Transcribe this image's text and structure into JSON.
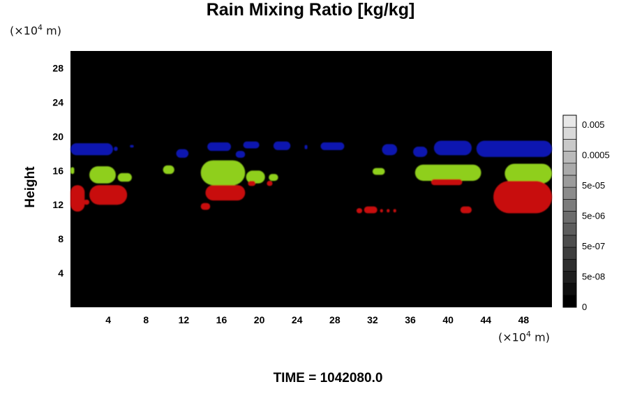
{
  "title": "Rain Mixing Ratio [kg/kg]",
  "ylabel": "Height",
  "y_unit": {
    "prefix": "(×10",
    "exp": "4",
    "suffix": " m)"
  },
  "x_unit": {
    "prefix": "(×10",
    "exp": "4",
    "suffix": " m)"
  },
  "time_label": "TIME = 1042080.0",
  "colors": {
    "background": "#000000",
    "page": "#ffffff",
    "blue_layer": "#0d14b0",
    "green_layer": "#8fcf1a",
    "red_layer": "#c81010"
  },
  "chart_data": {
    "type": "heatmap",
    "title": "Rain Mixing Ratio [kg/kg]",
    "xlabel": "",
    "ylabel": "Height",
    "xlim": [
      0,
      51
    ],
    "ylim": [
      0,
      30
    ],
    "x_ticks": [
      "4",
      "8",
      "12",
      "16",
      "20",
      "24",
      "28",
      "32",
      "36",
      "40",
      "44",
      "48"
    ],
    "y_ticks": [
      "4",
      "8",
      "12",
      "16",
      "20",
      "24",
      "28"
    ],
    "colorbar": {
      "labels": [
        "0.005",
        "0.0005",
        "5e-05",
        "5e-06",
        "5e-07",
        "5e-08",
        "0"
      ],
      "levels": 16,
      "color_min": "#000000",
      "color_max": "#e8e8e8"
    },
    "blobs": [
      {
        "layer": "blue",
        "x0": 0,
        "x1": 4.5,
        "y0": 17.8,
        "y1": 19.2
      },
      {
        "layer": "blue",
        "x0": 4.6,
        "x1": 5.0,
        "y0": 18.3,
        "y1": 18.8
      },
      {
        "layer": "blue",
        "x0": 6.3,
        "x1": 6.7,
        "y0": 18.7,
        "y1": 19.0
      },
      {
        "layer": "blue",
        "x0": 11.2,
        "x1": 12.5,
        "y0": 17.5,
        "y1": 18.5
      },
      {
        "layer": "blue",
        "x0": 14.5,
        "x1": 17.0,
        "y0": 18.3,
        "y1": 19.3
      },
      {
        "layer": "blue",
        "x0": 17.5,
        "x1": 18.5,
        "y0": 17.5,
        "y1": 18.3
      },
      {
        "layer": "blue",
        "x0": 18.3,
        "x1": 20.0,
        "y0": 18.6,
        "y1": 19.4
      },
      {
        "layer": "blue",
        "x0": 21.5,
        "x1": 23.3,
        "y0": 18.4,
        "y1": 19.4
      },
      {
        "layer": "blue",
        "x0": 24.8,
        "x1": 25.1,
        "y0": 18.5,
        "y1": 19.0
      },
      {
        "layer": "blue",
        "x0": 26.5,
        "x1": 29.0,
        "y0": 18.4,
        "y1": 19.3
      },
      {
        "layer": "blue",
        "x0": 33.0,
        "x1": 34.6,
        "y0": 17.8,
        "y1": 19.1
      },
      {
        "layer": "blue",
        "x0": 36.3,
        "x1": 37.8,
        "y0": 17.6,
        "y1": 18.8
      },
      {
        "layer": "blue",
        "x0": 38.5,
        "x1": 42.5,
        "y0": 17.8,
        "y1": 19.5
      },
      {
        "layer": "blue",
        "x0": 43.0,
        "x1": 51.0,
        "y0": 17.6,
        "y1": 19.5
      },
      {
        "layer": "green",
        "x0": 0,
        "x1": 0.4,
        "y0": 15.6,
        "y1": 16.4
      },
      {
        "layer": "green",
        "x0": 2.0,
        "x1": 4.8,
        "y0": 14.5,
        "y1": 16.5
      },
      {
        "layer": "green",
        "x0": 5.0,
        "x1": 6.5,
        "y0": 14.7,
        "y1": 15.7
      },
      {
        "layer": "green",
        "x0": 9.8,
        "x1": 11.0,
        "y0": 15.6,
        "y1": 16.6
      },
      {
        "layer": "green",
        "x0": 13.8,
        "x1": 18.5,
        "y0": 14.3,
        "y1": 17.2
      },
      {
        "layer": "green",
        "x0": 18.6,
        "x1": 20.6,
        "y0": 14.5,
        "y1": 16.0
      },
      {
        "layer": "green",
        "x0": 21.0,
        "x1": 22.0,
        "y0": 14.8,
        "y1": 15.6
      },
      {
        "layer": "green",
        "x0": 32.0,
        "x1": 33.3,
        "y0": 15.5,
        "y1": 16.3
      },
      {
        "layer": "green",
        "x0": 36.5,
        "x1": 43.5,
        "y0": 14.8,
        "y1": 16.7
      },
      {
        "layer": "green",
        "x0": 46.0,
        "x1": 51.0,
        "y0": 14.5,
        "y1": 16.8
      },
      {
        "layer": "red",
        "x0": 0,
        "x1": 1.5,
        "y0": 11.2,
        "y1": 14.3
      },
      {
        "layer": "red",
        "x0": 1.4,
        "x1": 2.0,
        "y0": 12.0,
        "y1": 12.6
      },
      {
        "layer": "red",
        "x0": 2.0,
        "x1": 6.0,
        "y0": 12.0,
        "y1": 14.3
      },
      {
        "layer": "red",
        "x0": 13.8,
        "x1": 14.8,
        "y0": 11.4,
        "y1": 12.2
      },
      {
        "layer": "red",
        "x0": 14.3,
        "x1": 18.5,
        "y0": 12.5,
        "y1": 14.3
      },
      {
        "layer": "red",
        "x0": 18.8,
        "x1": 19.6,
        "y0": 14.2,
        "y1": 14.8
      },
      {
        "layer": "red",
        "x0": 20.8,
        "x1": 21.4,
        "y0": 14.2,
        "y1": 14.8
      },
      {
        "layer": "red",
        "x0": 30.3,
        "x1": 30.9,
        "y0": 11.0,
        "y1": 11.6
      },
      {
        "layer": "red",
        "x0": 31.1,
        "x1": 32.5,
        "y0": 11.0,
        "y1": 11.8
      },
      {
        "layer": "red",
        "x0": 32.8,
        "x1": 33.1,
        "y0": 11.1,
        "y1": 11.5
      },
      {
        "layer": "red",
        "x0": 33.5,
        "x1": 33.8,
        "y0": 11.1,
        "y1": 11.5
      },
      {
        "layer": "red",
        "x0": 34.2,
        "x1": 34.5,
        "y0": 11.1,
        "y1": 11.5
      },
      {
        "layer": "red",
        "x0": 38.2,
        "x1": 41.5,
        "y0": 14.3,
        "y1": 15.0
      },
      {
        "layer": "red",
        "x0": 41.3,
        "x1": 42.5,
        "y0": 11.0,
        "y1": 11.8
      },
      {
        "layer": "red",
        "x0": 44.8,
        "x1": 51.0,
        "y0": 11.0,
        "y1": 14.8
      },
      {
        "layer": "red",
        "x0": 47.3,
        "x1": 48.8,
        "y0": 11.5,
        "y1": 12.5
      }
    ]
  }
}
